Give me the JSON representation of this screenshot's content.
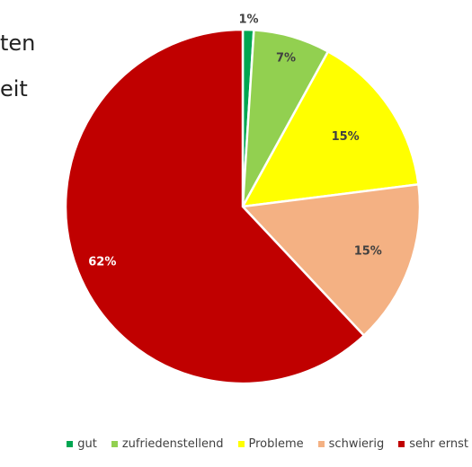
{
  "background_text": [
    "ten",
    "eit"
  ],
  "chart_data": {
    "type": "pie",
    "categories": [
      "gut",
      "zufriedenstellend",
      "Probleme",
      "schwierig",
      "sehr ernst"
    ],
    "values": [
      1,
      7,
      15,
      15,
      62
    ],
    "labels": [
      "1%",
      "7%",
      "15%",
      "15%",
      "62%"
    ],
    "colors": [
      "#00a651",
      "#92d050",
      "#ffff00",
      "#f4b183",
      "#c00000"
    ],
    "label_colors": [
      "#404040",
      "#404040",
      "#404040",
      "#404040",
      "#ffffff"
    ],
    "start_angle": "12 o'clock",
    "direction": "clockwise",
    "legend_position": "bottom"
  }
}
